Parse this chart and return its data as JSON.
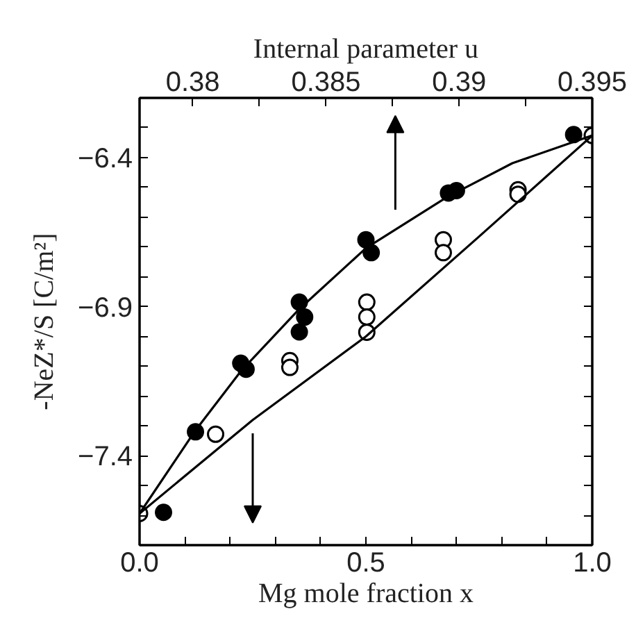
{
  "chart_data": {
    "type": "scatter",
    "xlabel": "Mg mole fraction x",
    "x2label": "Internal parameter u",
    "ylabel": "-NeZ*/S [C/m²]",
    "xlim": [
      0.0,
      1.0
    ],
    "x2lim": [
      0.378,
      0.395
    ],
    "ylim": [
      -7.7,
      -6.2
    ],
    "xticks": [
      {
        "value": 0.0,
        "label": "0.0"
      },
      {
        "value": 0.1,
        "label": null
      },
      {
        "value": 0.2,
        "label": null
      },
      {
        "value": 0.3,
        "label": null
      },
      {
        "value": 0.4,
        "label": null
      },
      {
        "value": 0.5,
        "label": "0.5"
      },
      {
        "value": 0.6,
        "label": null
      },
      {
        "value": 0.7,
        "label": null
      },
      {
        "value": 0.8,
        "label": null
      },
      {
        "value": 0.9,
        "label": null
      },
      {
        "value": 1.0,
        "label": "1.0"
      }
    ],
    "x2ticks": [
      0.38,
      {
        "value": 0.3825,
        "label": null
      },
      0.385,
      {
        "value": 0.3875,
        "label": null
      },
      0.39,
      {
        "value": 0.3925,
        "label": null
      },
      0.395
    ],
    "yticks": [
      {
        "value": -7.6,
        "label": null
      },
      {
        "value": -7.5,
        "label": null
      },
      {
        "value": -7.4,
        "label": "−7.4"
      },
      {
        "value": -7.3,
        "label": null
      },
      {
        "value": -7.2,
        "label": null
      },
      {
        "value": -7.1,
        "label": null
      },
      {
        "value": -7.0,
        "label": null
      },
      {
        "value": -6.9,
        "label": "−6.9"
      },
      {
        "value": -6.8,
        "label": null
      },
      {
        "value": -6.7,
        "label": null
      },
      {
        "value": -6.6,
        "label": null
      },
      {
        "value": -6.5,
        "label": null
      },
      {
        "value": -6.4,
        "label": "−6.4"
      },
      {
        "value": -6.3,
        "label": null
      }
    ],
    "grid": false,
    "series": [
      {
        "color": "#000000",
        "marker": "circle",
        "axis": "x2",
        "x": [
          0.3789,
          0.3801,
          0.3818,
          0.382,
          0.384,
          0.3842,
          0.384,
          0.3865,
          0.3867,
          0.3896,
          0.3899,
          0.3943
        ],
        "values": [
          -7.59,
          -7.32,
          -7.09,
          -7.11,
          -6.885,
          -6.935,
          -6.985,
          -6.676,
          -6.719,
          -6.519,
          -6.511,
          -6.323
        ]
      },
      {
        "color": "#ffffff",
        "marker": "circle",
        "x": [
          0.0,
          0.168,
          0.332,
          0.332,
          0.502,
          0.502,
          0.502,
          0.671,
          0.671,
          0.836,
          0.836,
          1.0
        ],
        "values": [
          -7.594,
          -7.328,
          -7.081,
          -7.104,
          -6.885,
          -6.935,
          -6.986,
          -6.676,
          -6.719,
          -6.508,
          -6.523,
          -6.326
        ]
      },
      {
        "type": "line",
        "marker": "none",
        "color": "#000000",
        "axis": "x2",
        "x": [
          0.378,
          0.3801,
          0.3818,
          0.384,
          0.3865,
          0.3895,
          0.392,
          0.395
        ],
        "values": [
          -7.594,
          -7.315,
          -7.117,
          -6.908,
          -6.704,
          -6.535,
          -6.419,
          -6.326
        ]
      },
      {
        "type": "line",
        "marker": "none",
        "color": "#000000",
        "x": [
          0.0,
          0.25,
          0.5,
          0.75,
          1.0
        ],
        "values": [
          -7.594,
          -7.28,
          -7.0,
          -6.665,
          -6.326
        ]
      }
    ]
  }
}
